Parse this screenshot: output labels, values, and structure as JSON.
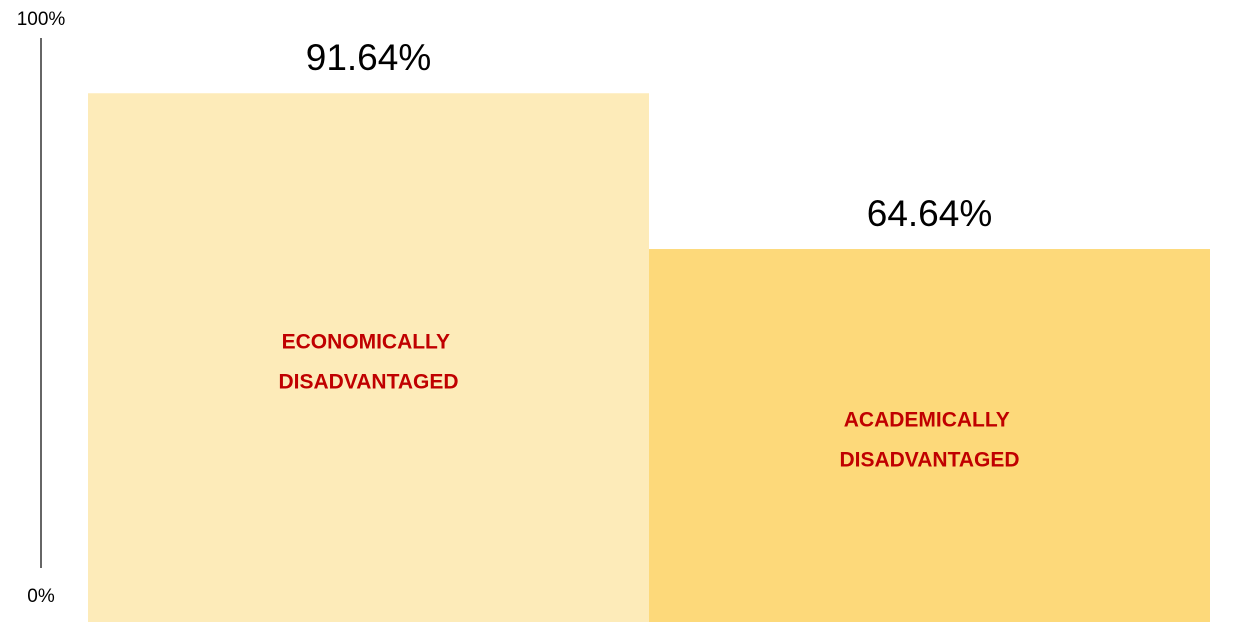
{
  "chart_data": {
    "type": "bar",
    "categories": [
      "ECONOMICALLY DISADVANTAGED",
      "ACADEMICALLY DISADVANTAGED"
    ],
    "values": [
      91.64,
      64.64
    ],
    "value_labels": [
      "91.64%",
      "64.64%"
    ],
    "colors": [
      "#fdebb9",
      "#fdd97a"
    ],
    "label_color": "#c00000",
    "ylim": [
      0,
      100
    ],
    "yticks": [
      {
        "value": 0,
        "label": "0%"
      },
      {
        "value": 100,
        "label": "100%"
      }
    ]
  }
}
